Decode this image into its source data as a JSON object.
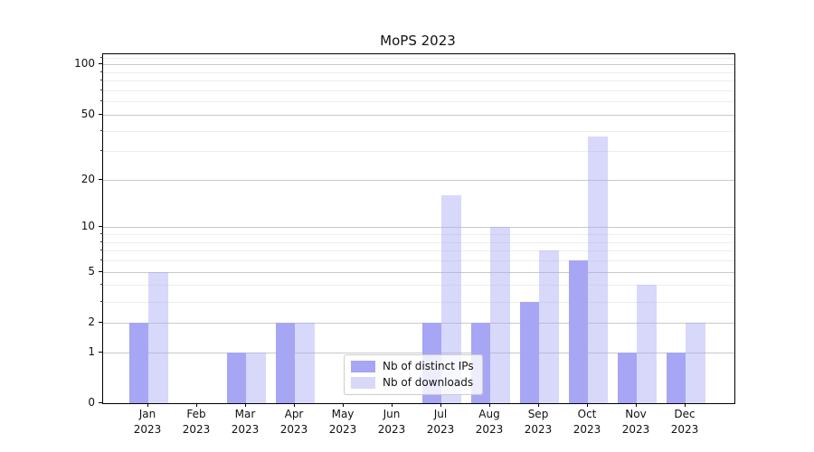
{
  "title": "MoPS 2023",
  "chart_data": {
    "type": "bar",
    "title": "MoPS 2023",
    "categories": [
      "Jan",
      "Feb",
      "Mar",
      "Apr",
      "May",
      "Jun",
      "Jul",
      "Aug",
      "Sep",
      "Oct",
      "Nov",
      "Dec"
    ],
    "category_year_line": "2023",
    "series": [
      {
        "name": "Nb of distinct IPs",
        "color": "#a6a6f4",
        "values": [
          2,
          0,
          1,
          2,
          0,
          0,
          2,
          2,
          3,
          6,
          1,
          1
        ]
      },
      {
        "name": "Nb of downloads",
        "color": "#d8d8f8",
        "bar_fill": "rgba(166,166,244,0.44)",
        "values": [
          5,
          0,
          1,
          2,
          0,
          0,
          16,
          10,
          7,
          37,
          4,
          2
        ]
      }
    ],
    "y_scale": "log1p",
    "y_axis_ticks": [
      0,
      1,
      2,
      5,
      10,
      20,
      50,
      100
    ],
    "y_minor_gridlines": [
      3,
      4,
      6,
      7,
      8,
      9,
      30,
      40,
      60,
      70,
      80,
      90,
      110
    ],
    "ylim": [
      0,
      115
    ],
    "xlabel": "",
    "ylabel": "",
    "grid": "horizontal",
    "legend_position": "lower center inside axes",
    "colors": {
      "major_grid": "#c9c9c9",
      "minor_grid": "#ededed",
      "axis_spine": "#000000",
      "text": "#111111"
    }
  }
}
